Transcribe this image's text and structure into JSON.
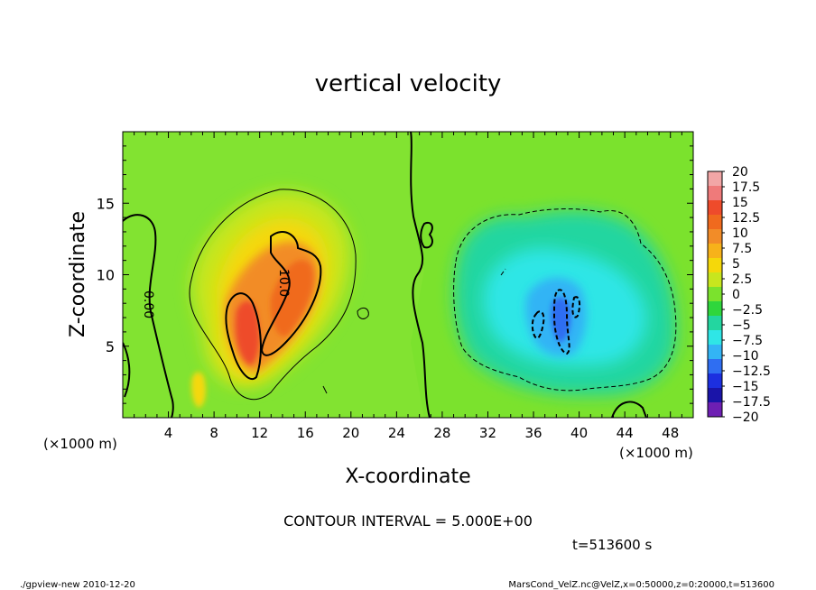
{
  "chart_data": {
    "type": "heatmap",
    "title": "vertical velocity",
    "xlabel": "X-coordinate",
    "ylabel": "Z-coordinate",
    "x_unit_left": "(×1000 m)",
    "x_unit_right": "(×1000 m)",
    "xlim": [
      0,
      50
    ],
    "ylim": [
      0,
      20
    ],
    "x_ticks": [
      {
        "label": "4",
        "value": 4
      },
      {
        "label": "8",
        "value": 8
      },
      {
        "label": "12",
        "value": 12
      },
      {
        "label": "16",
        "value": 16
      },
      {
        "label": "20",
        "value": 20
      },
      {
        "label": "24",
        "value": 24
      },
      {
        "label": "28",
        "value": 28
      },
      {
        "label": "32",
        "value": 32
      },
      {
        "label": "36",
        "value": 36
      },
      {
        "label": "40",
        "value": 40
      },
      {
        "label": "44",
        "value": 44
      },
      {
        "label": "48",
        "value": 48
      }
    ],
    "y_ticks": [
      {
        "label": "5",
        "value": 5
      },
      {
        "label": "10",
        "value": 10
      },
      {
        "label": "15",
        "value": 15
      }
    ],
    "colorbar": {
      "labels": [
        "20",
        "17.5",
        "15",
        "12.5",
        "10",
        "7.5",
        "5",
        "2.5",
        "0",
        "−2.5",
        "−5",
        "−7.5",
        "−10",
        "−12.5",
        "−15",
        "−17.5",
        "−20"
      ],
      "colors": [
        "#f2a6a6",
        "#ef7a7a",
        "#ee4b2b",
        "#f06a1e",
        "#f28c28",
        "#f7b21a",
        "#f5d80a",
        "#c8e61e",
        "#7be22d",
        "#2fd63c",
        "#23d6a0",
        "#2fe6e6",
        "#33b4f5",
        "#2f6ef2",
        "#1c2fe0",
        "#1a14a8",
        "#6e1fb3"
      ]
    },
    "features": [
      {
        "kind": "updraft",
        "x_range": [
          7,
          20
        ],
        "z_range": [
          2,
          16
        ],
        "max_value": 12.5,
        "contour_label": "10.0"
      },
      {
        "kind": "downdraft",
        "x_range": [
          29,
          48
        ],
        "z_range": [
          1.5,
          15
        ],
        "min_value": -10
      },
      {
        "kind": "zero-contour",
        "contour_label": "0.00"
      }
    ],
    "contour_interval": "CONTOUR INTERVAL = 5.000E+00",
    "time": "t=513600 s"
  },
  "footer": {
    "left": "./gpview-new  2010-12-20",
    "right": "MarsCond_VelZ.nc@VelZ,x=0:50000,z=0:20000,t=513600"
  }
}
